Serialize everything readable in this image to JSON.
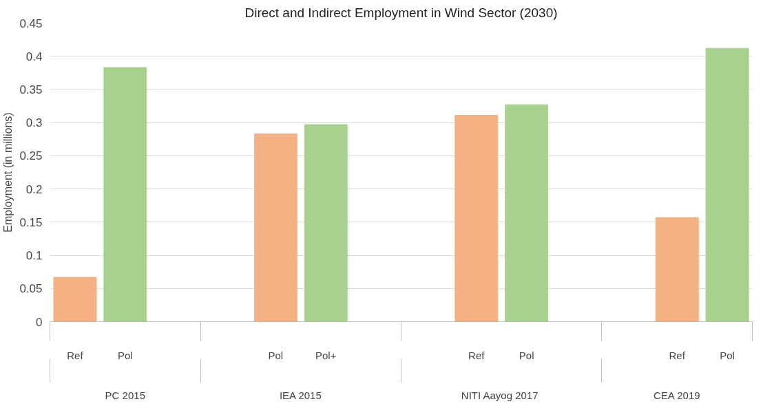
{
  "chart_data": {
    "type": "bar",
    "title": "Direct and Indirect Employment in Wind Sector (2030)",
    "ylabel": "Employment (in millions)",
    "categories": [
      "Ref",
      "Pol",
      null,
      null,
      "Pol",
      "Pol+",
      null,
      null,
      "Ref",
      "Pol",
      null,
      null,
      "Ref",
      "Pol"
    ],
    "values": [
      0.067,
      0.383,
      null,
      null,
      0.283,
      0.297,
      null,
      null,
      0.311,
      0.327,
      null,
      null,
      0.157,
      0.412
    ],
    "colors": [
      "#f4b183",
      "#a9d18e",
      "#f4b183",
      "#a9d18e",
      "#f4b183",
      "#a9d18e",
      "#f4b183",
      "#a9d18e",
      "#f4b183",
      "#a9d18e",
      "#f4b183",
      "#a9d18e",
      "#f4b183",
      "#a9d18e"
    ],
    "annotations": [
      "PC 2015",
      "IEA 2015",
      "NITI Aayog  2017",
      "CEA 2019"
    ],
    "ylim": [
      0,
      0.45
    ],
    "yticks": [
      0,
      0.05,
      0.1,
      0.15,
      0.2,
      0.25,
      0.3,
      0.35,
      0.4,
      0.45
    ],
    "grid": "y"
  }
}
